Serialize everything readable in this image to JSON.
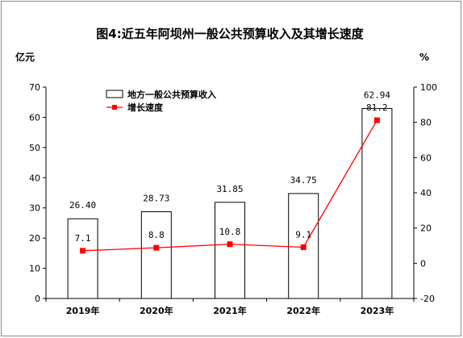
{
  "chart_data": {
    "type": "bar",
    "title": "图4:近五年阿坝州一般公共预算收入及其增长速度",
    "ylabel_left": "亿元",
    "ylabel_right": "%",
    "categories": [
      "2019年",
      "2020年",
      "2021年",
      "2022年",
      "2023年"
    ],
    "series": [
      {
        "name": "地方一般公共预算收入",
        "type": "bar",
        "axis": "left",
        "values": [
          26.4,
          28.73,
          31.85,
          34.75,
          62.94
        ],
        "labels": [
          "26.40",
          "28.73",
          "31.85",
          "34.75",
          "62.94"
        ]
      },
      {
        "name": "增长速度",
        "type": "line",
        "axis": "right",
        "values": [
          7.1,
          8.8,
          10.8,
          9.1,
          81.2
        ],
        "labels": [
          "7.1",
          "8.8",
          "10.8",
          "9.1",
          "81.2"
        ]
      }
    ],
    "ylim_left": [
      0,
      70
    ],
    "ylim_right": [
      -20,
      100
    ],
    "left_ticks": [
      "0",
      "10",
      "20",
      "30",
      "40",
      "50",
      "60",
      "70"
    ],
    "right_ticks": [
      "-20",
      "0",
      "20",
      "40",
      "60",
      "80",
      "100"
    ],
    "grid": false,
    "legend_position": "top-left",
    "colors": {
      "bar_fill": "#ffffff",
      "bar_stroke": "#000000",
      "line": "#ff0000",
      "marker": "#ff0000"
    }
  }
}
